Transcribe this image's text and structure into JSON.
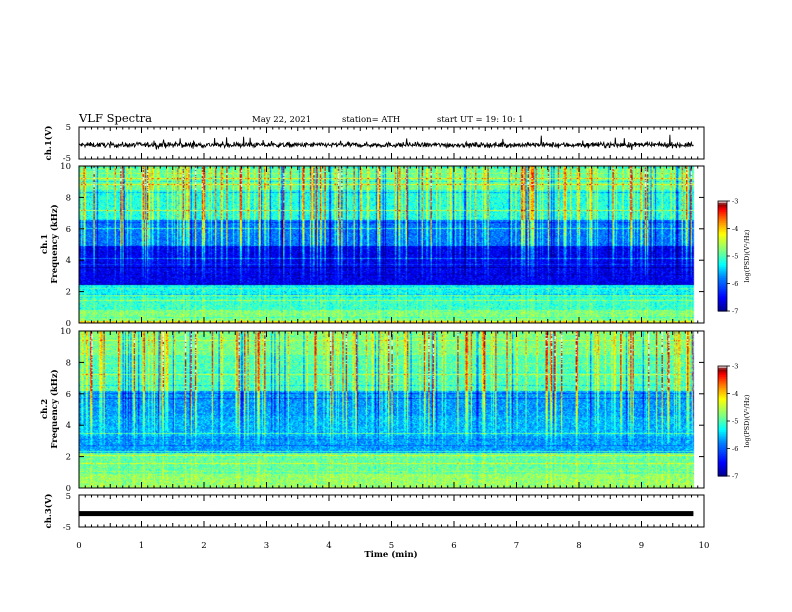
{
  "header": {
    "title": "VLF Spectra",
    "date": "May 22, 2021",
    "station": "station= ATH",
    "start": "start  UT =   19: 10: 1"
  },
  "chart_data": [
    {
      "type": "line",
      "panel": "ch.1 waveform",
      "ylabel": "ch.1(V)",
      "ylim": [
        -5,
        5
      ],
      "yticks": [
        "5",
        "-5"
      ],
      "x_range_min": [
        0,
        9.83
      ],
      "baseline_v": -0.6,
      "noise_amplitude_v": 2.2
    },
    {
      "type": "heatmap",
      "panel": "ch.1 spectrogram",
      "ylabel_line1": "ch.1",
      "ylabel_line2": "Frequency (kHz)",
      "ylim": [
        0,
        10
      ],
      "yticks": [
        "0",
        "2",
        "4",
        "6",
        "8",
        "10"
      ],
      "colorbar": {
        "label": "log(PSD)(V²/Hz)",
        "range": [
          -7,
          -3
        ],
        "ticks": [
          "-3",
          "-4",
          "-5",
          "-6",
          "-7"
        ]
      },
      "band_levels": [
        {
          "f_min": 0.0,
          "f_max": 0.8,
          "level": -4.8
        },
        {
          "f_min": 0.8,
          "f_max": 1.7,
          "level": -5.1
        },
        {
          "f_min": 1.7,
          "f_max": 2.4,
          "level": -5.3
        },
        {
          "f_min": 2.4,
          "f_max": 4.9,
          "level": -6.6
        },
        {
          "f_min": 4.9,
          "f_max": 6.6,
          "level": -5.9
        },
        {
          "f_min": 6.6,
          "f_max": 8.5,
          "level": -5.2
        },
        {
          "f_min": 8.5,
          "f_max": 10.0,
          "level": -4.9
        }
      ]
    },
    {
      "type": "heatmap",
      "panel": "ch.2 spectrogram",
      "ylabel_line1": "ch.2",
      "ylabel_line2": "Frequency (kHz)",
      "ylim": [
        0,
        10
      ],
      "yticks": [
        "0",
        "2",
        "4",
        "6",
        "8",
        "10"
      ],
      "colorbar": {
        "label": "log(PSD)(V²/Hz)",
        "range": [
          -7,
          -3
        ],
        "ticks": [
          "-3",
          "-4",
          "-5",
          "-6",
          "-7"
        ]
      },
      "band_levels": [
        {
          "f_min": 0.0,
          "f_max": 0.9,
          "level": -4.7
        },
        {
          "f_min": 0.9,
          "f_max": 2.2,
          "level": -4.9
        },
        {
          "f_min": 2.2,
          "f_max": 3.3,
          "level": -5.7
        },
        {
          "f_min": 3.3,
          "f_max": 4.6,
          "level": -5.6
        },
        {
          "f_min": 4.6,
          "f_max": 6.2,
          "level": -5.7
        },
        {
          "f_min": 6.2,
          "f_max": 8.5,
          "level": -5.0
        },
        {
          "f_min": 8.5,
          "f_max": 10.0,
          "level": -4.8
        }
      ]
    },
    {
      "type": "line",
      "panel": "ch.3 waveform",
      "ylabel": "ch.3(V)",
      "ylim": [
        -5,
        5
      ],
      "yticks": [
        "5",
        "-5"
      ],
      "x_range_min": [
        0,
        9.83
      ],
      "baseline_v": -0.8,
      "noise_amplitude_v": 0.3
    }
  ],
  "xaxis": {
    "label": "Time  (min)",
    "range": [
      0,
      10
    ],
    "ticks": [
      "0",
      "1",
      "2",
      "3",
      "4",
      "5",
      "6",
      "7",
      "8",
      "9",
      "10"
    ]
  },
  "colors": {
    "colormap": [
      "#00008f",
      "#0000ff",
      "#0080ff",
      "#00ffff",
      "#80ff80",
      "#ffff00",
      "#ff8000",
      "#ff0000",
      "#800000",
      "#ffffff"
    ]
  }
}
